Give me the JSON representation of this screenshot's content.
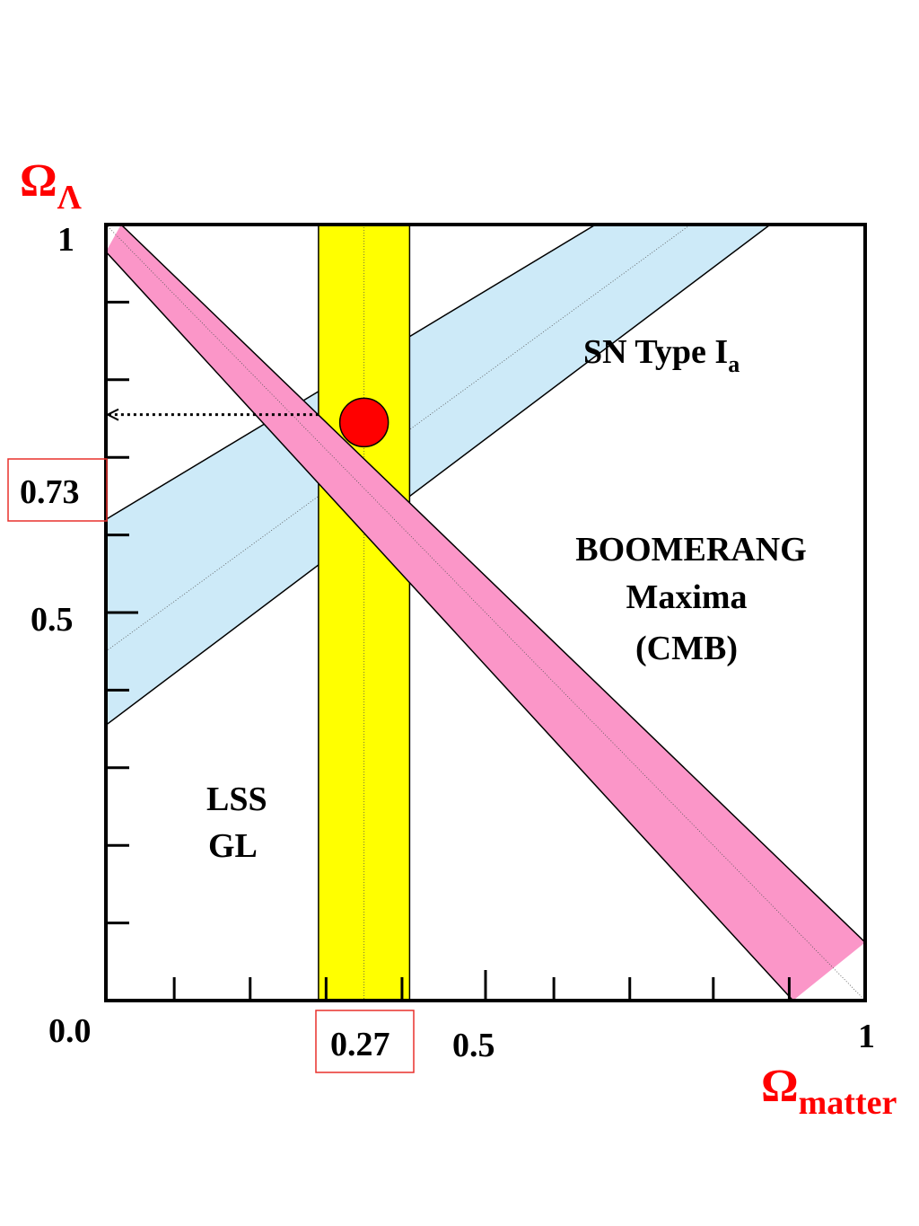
{
  "chart_data": {
    "type": "area",
    "xlabel": {
      "base": "Ω",
      "sub": "matter"
    },
    "ylabel": {
      "base": "Ω",
      "sub": "Λ"
    },
    "xlim": [
      0,
      1
    ],
    "ylim": [
      0,
      1
    ],
    "x_tick_labels": [
      {
        "value": 0.0,
        "text": "0.0"
      },
      {
        "value": 0.5,
        "text": "0.5"
      },
      {
        "value": 1,
        "text": "1"
      }
    ],
    "y_tick_labels": [
      {
        "value": 1,
        "text": "1"
      },
      {
        "value": 0.5,
        "text": "0.5"
      }
    ],
    "x_minor_ticks": [
      0.09,
      0.19,
      0.29,
      0.39,
      0.5,
      0.59,
      0.69,
      0.8,
      0.9
    ],
    "y_minor_ticks": [
      0.1,
      0.2,
      0.3,
      0.4,
      0.6,
      0.7,
      0.8,
      0.9
    ],
    "series": [
      {
        "name": "SN Type Ia",
        "label": {
          "base": "SN Type I",
          "sub": "a"
        },
        "color": "#cdeaf8",
        "shape": "band",
        "center": [
          [
            0,
            0.45
          ],
          [
            0.77,
            1.0
          ]
        ],
        "lower": [
          [
            0,
            0.355
          ],
          [
            0.875,
            1.0
          ]
        ],
        "upper": [
          [
            0,
            0.62
          ],
          [
            0.645,
            1.0
          ]
        ]
      },
      {
        "name": "BOOMERANG Maxima (CMB)",
        "label_lines": [
          "BOOMERANG",
          "Maxima",
          "(CMB)"
        ],
        "color": "#fb96c8",
        "shape": "band",
        "center": [
          [
            0,
            1.0
          ],
          [
            1.0,
            0.0
          ]
        ],
        "upper": [
          [
            0.02,
            1.0
          ],
          [
            1.0,
            0.075
          ]
        ],
        "lower": [
          [
            0,
            0.965
          ],
          [
            0.905,
            0.0
          ]
        ]
      },
      {
        "name": "LSS GL",
        "label_lines": [
          "LSS",
          "GL"
        ],
        "color": "#ffff00",
        "shape": "vertical_band",
        "center": 0.34,
        "range": [
          0.28,
          0.4
        ]
      }
    ],
    "best_fit": {
      "x": 0.34,
      "y": 0.745,
      "color": "#ff0000"
    },
    "highlighted_values": {
      "x": {
        "value": 0.27,
        "text": "0.27"
      },
      "y": {
        "value": 0.73,
        "text": "0.73"
      }
    },
    "accent_color": "#ff0000",
    "box_color": "#e8302c",
    "grid": false
  }
}
